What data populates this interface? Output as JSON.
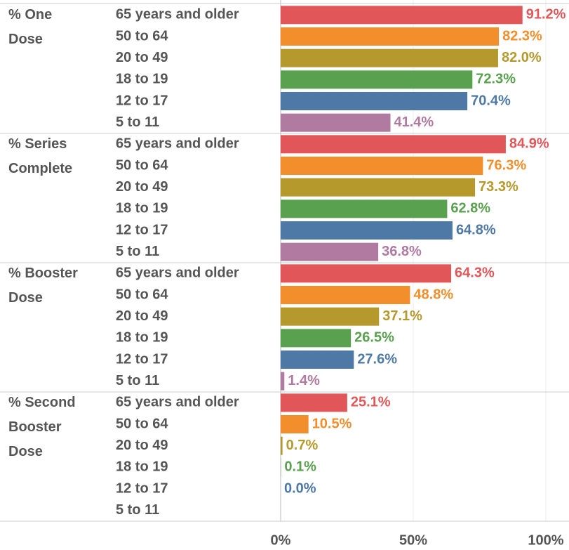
{
  "chart_data": {
    "type": "bar",
    "categories": [
      "65 years and older",
      "50 to 64",
      "20 to 49",
      "18 to 19",
      "12 to 17",
      "5 to 11"
    ],
    "colors": [
      "#e15759",
      "#f28e2b",
      "#b6992d",
      "#59a14f",
      "#4e79a7",
      "#b07aa1"
    ],
    "series": [
      {
        "name": "% One Dose",
        "values": [
          91.2,
          82.3,
          82.0,
          72.3,
          70.4,
          41.4
        ],
        "value_labels": [
          "91.2%",
          "82.3%",
          "82.0%",
          "72.3%",
          "70.4%",
          "41.4%"
        ]
      },
      {
        "name": "% Series Complete",
        "values": [
          84.9,
          76.3,
          73.3,
          62.8,
          64.8,
          36.8
        ],
        "value_labels": [
          "84.9%",
          "76.3%",
          "73.3%",
          "62.8%",
          "64.8%",
          "36.8%"
        ]
      },
      {
        "name": "% Booster Dose",
        "values": [
          64.3,
          48.8,
          37.1,
          26.5,
          27.6,
          1.4
        ],
        "value_labels": [
          "64.3%",
          "48.8%",
          "37.1%",
          "26.5%",
          "27.6%",
          "1.4%"
        ]
      },
      {
        "name": "% Second Booster Dose",
        "values": [
          25.1,
          10.5,
          0.7,
          0.1,
          0.0,
          null
        ],
        "value_labels": [
          "25.1%",
          "10.5%",
          "0.7%",
          "0.1%",
          "0.0%",
          null
        ]
      }
    ],
    "xlim": [
      0,
      100
    ],
    "xticks": [
      {
        "value": 0,
        "label": "0%"
      },
      {
        "value": 50,
        "label": "50%"
      },
      {
        "value": 100,
        "label": "100%"
      }
    ],
    "grid": true
  }
}
